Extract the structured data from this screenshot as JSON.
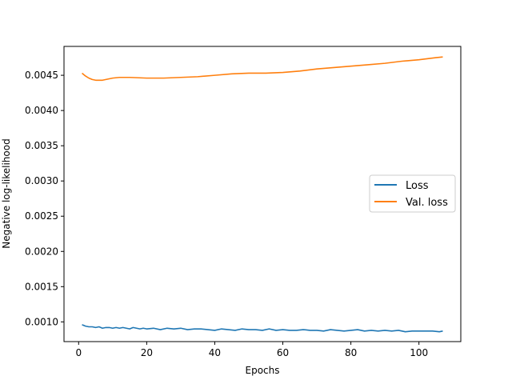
{
  "chart_data": {
    "type": "line",
    "title": "",
    "xlabel": "Epochs",
    "ylabel": "Negative log-likelihood",
    "xlim": [
      -4.3,
      112.3
    ],
    "ylim": [
      0.00072,
      0.00491
    ],
    "xticks": [
      0,
      20,
      40,
      60,
      80,
      100
    ],
    "xtick_labels": [
      "0",
      "20",
      "40",
      "60",
      "80",
      "100"
    ],
    "yticks": [
      0.001,
      0.0015,
      0.002,
      0.0025,
      0.003,
      0.0035,
      0.004,
      0.0045
    ],
    "ytick_labels": [
      "0.0010",
      "0.0015",
      "0.0020",
      "0.0025",
      "0.0030",
      "0.0035",
      "0.0040",
      "0.0045"
    ],
    "grid": false,
    "legend_position": "center-right",
    "series": [
      {
        "name": "Loss",
        "color": "#1f77b4",
        "x": [
          1,
          2,
          3,
          4,
          5,
          6,
          7,
          8,
          9,
          10,
          11,
          12,
          13,
          14,
          15,
          16,
          17,
          18,
          19,
          20,
          22,
          24,
          26,
          28,
          30,
          32,
          34,
          36,
          38,
          40,
          42,
          44,
          46,
          48,
          50,
          52,
          54,
          56,
          58,
          60,
          62,
          64,
          66,
          68,
          70,
          72,
          74,
          76,
          78,
          80,
          82,
          84,
          86,
          88,
          90,
          92,
          94,
          96,
          98,
          100,
          102,
          104,
          106,
          107
        ],
        "y": [
          0.00096,
          0.00094,
          0.00093,
          0.00093,
          0.00092,
          0.00093,
          0.00091,
          0.00092,
          0.00092,
          0.00091,
          0.00092,
          0.00091,
          0.00092,
          0.00091,
          0.0009,
          0.00092,
          0.00091,
          0.0009,
          0.00091,
          0.0009,
          0.00091,
          0.00089,
          0.00091,
          0.0009,
          0.00091,
          0.00089,
          0.0009,
          0.0009,
          0.00089,
          0.00088,
          0.0009,
          0.00089,
          0.00088,
          0.0009,
          0.00089,
          0.00089,
          0.00088,
          0.0009,
          0.00088,
          0.00089,
          0.00088,
          0.00088,
          0.00089,
          0.00088,
          0.00088,
          0.00087,
          0.00089,
          0.00088,
          0.00087,
          0.00088,
          0.00089,
          0.00087,
          0.00088,
          0.00087,
          0.00088,
          0.00087,
          0.00088,
          0.00086,
          0.00087,
          0.00087,
          0.00087,
          0.00087,
          0.00086,
          0.00087
        ]
      },
      {
        "name": "Val. loss",
        "color": "#ff7f0e",
        "x": [
          1,
          2,
          3,
          4,
          5,
          6,
          7,
          8,
          10,
          12,
          15,
          20,
          25,
          30,
          35,
          40,
          45,
          50,
          55,
          60,
          65,
          70,
          75,
          80,
          85,
          90,
          95,
          100,
          105,
          107
        ],
        "y": [
          0.00453,
          0.00449,
          0.00446,
          0.00444,
          0.00443,
          0.00443,
          0.00443,
          0.00444,
          0.00446,
          0.00447,
          0.00447,
          0.00446,
          0.00446,
          0.00447,
          0.00448,
          0.0045,
          0.00452,
          0.00453,
          0.00453,
          0.00454,
          0.00456,
          0.00459,
          0.00461,
          0.00463,
          0.00465,
          0.00467,
          0.0047,
          0.00472,
          0.00475,
          0.00476
        ]
      }
    ]
  }
}
